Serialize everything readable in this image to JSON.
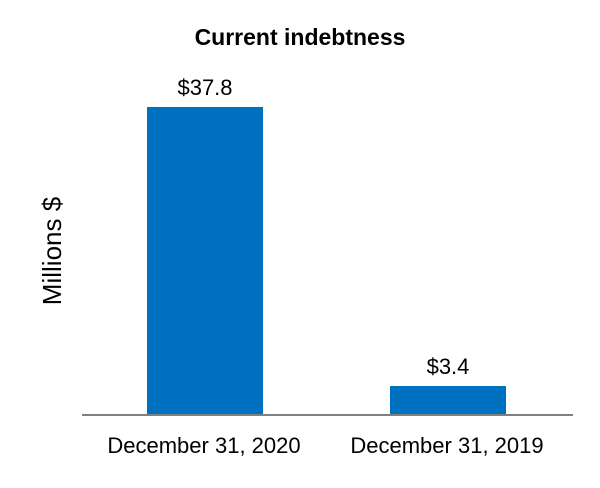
{
  "chart_data": {
    "type": "bar",
    "title": "Current indebtness",
    "ylabel": "Millions $",
    "xlabel": "",
    "categories": [
      "December 31, 2020",
      "December 31, 2019"
    ],
    "values": [
      37.8,
      3.4
    ],
    "data_labels": [
      "$37.8",
      "$3.4"
    ],
    "bar_color": "#0070C0",
    "axis_color": "#808080",
    "text_color": "#000000",
    "background_color": "#FFFFFF",
    "grid": false,
    "legend": false
  }
}
